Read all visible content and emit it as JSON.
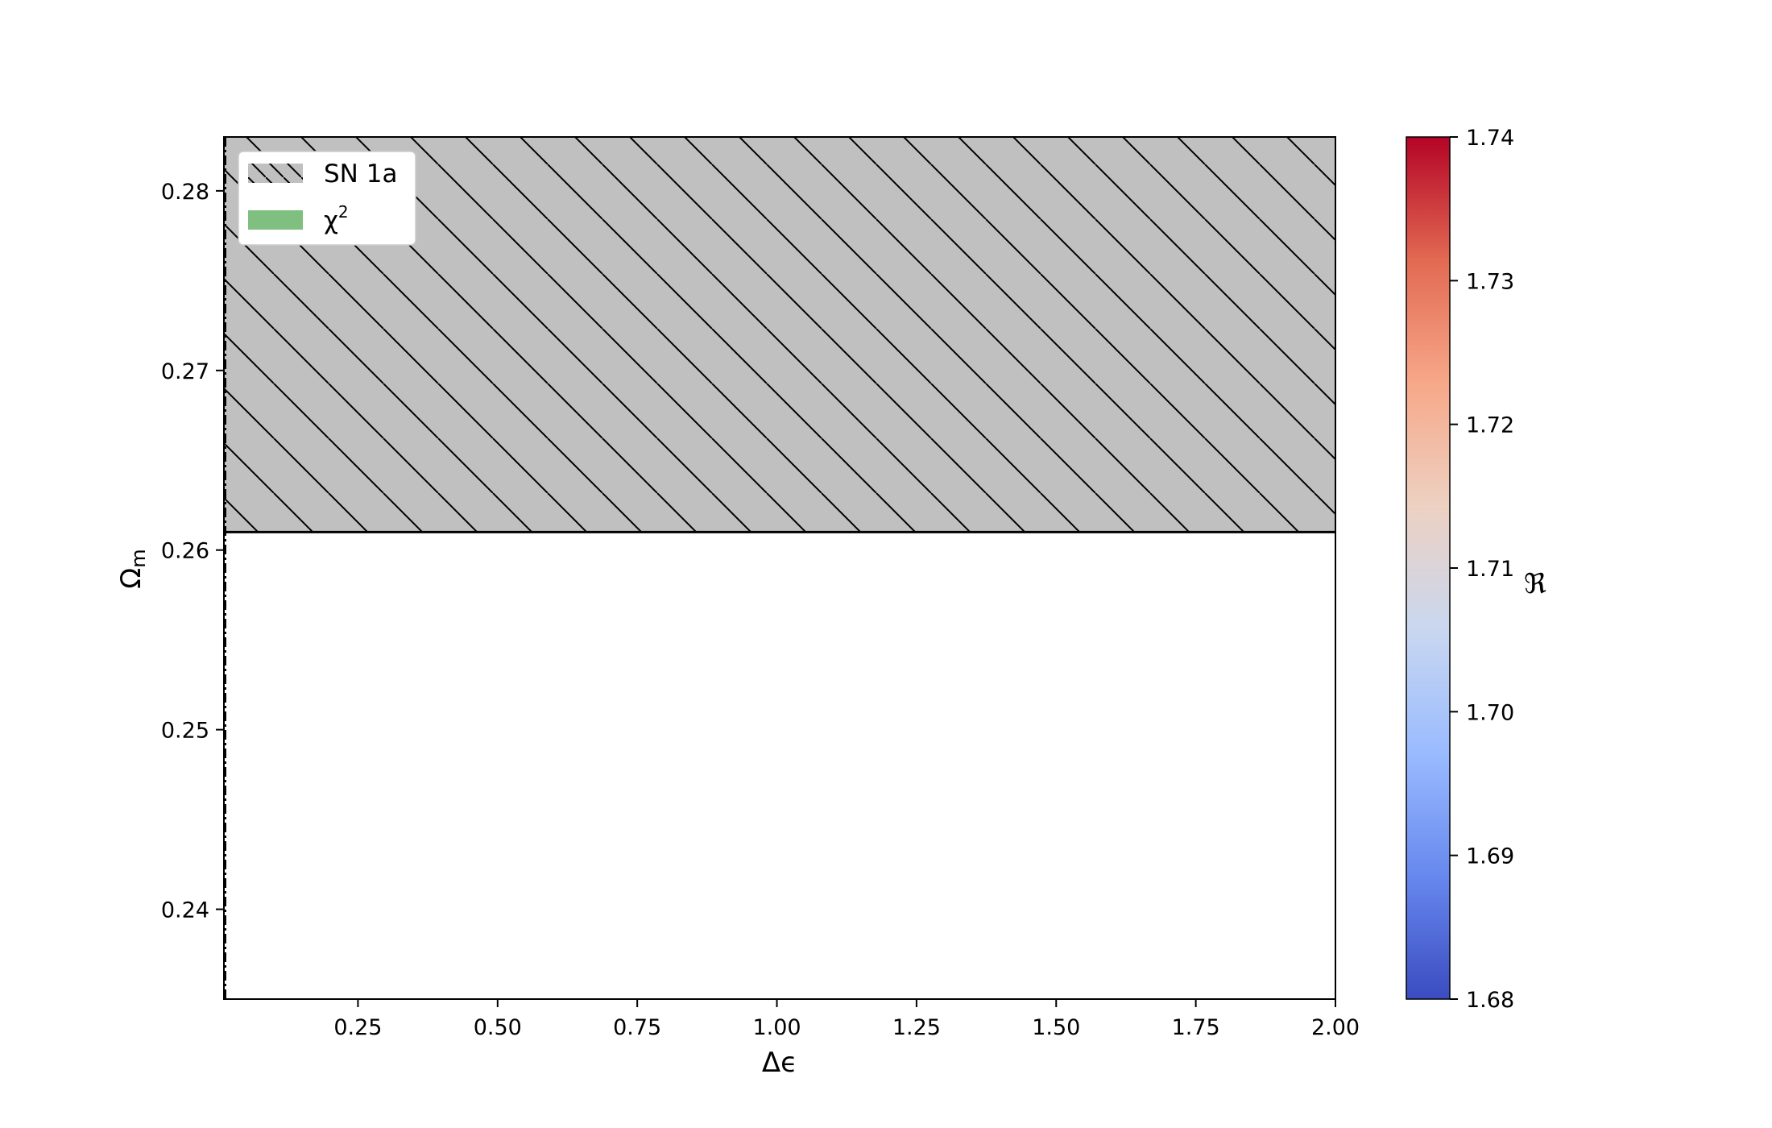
{
  "chart_data": {
    "type": "contour",
    "xlabel": "Δϵ",
    "ylabel": "Ω",
    "ylabel_sub": "m",
    "xlim": [
      0.01,
      2.0
    ],
    "ylim": [
      0.235,
      0.283
    ],
    "x_ticks": [
      0.25,
      0.5,
      0.75,
      1.0,
      1.25,
      1.5,
      1.75,
      2.0
    ],
    "x_tick_labels": [
      "0.25",
      "0.50",
      "0.75",
      "1.00",
      "1.25",
      "1.50",
      "1.75",
      "2.00"
    ],
    "y_ticks": [
      0.24,
      0.25,
      0.26,
      0.27,
      0.28
    ],
    "y_tick_labels": [
      "0.24",
      "0.25",
      "0.26",
      "0.27",
      "0.28"
    ],
    "sn1a_region": {
      "y_min": 0.261,
      "y_max": 0.283,
      "color": "#c0c0c0",
      "hatch": "\\"
    },
    "legend": {
      "placement": "upper-left",
      "entries": [
        {
          "label": "SN 1a",
          "color": "#c0c0c0",
          "hatch": true
        },
        {
          "label": "χ",
          "sup": "2",
          "color": "#7fbf7f",
          "hatch": false
        }
      ]
    },
    "colorbar": {
      "label": "ℜ",
      "colormap": "coolwarm",
      "range": [
        1.68,
        1.74
      ],
      "ticks": [
        1.68,
        1.69,
        1.7,
        1.71,
        1.72,
        1.73,
        1.74
      ],
      "tick_labels": [
        "1.68",
        "1.69",
        "1.70",
        "1.71",
        "1.72",
        "1.73",
        "1.74"
      ],
      "colors": [
        "#3b4cc0",
        "#6788ee",
        "#9abbff",
        "#c9d7f0",
        "#edd1c2",
        "#f7a889",
        "#e26952",
        "#b40426"
      ]
    }
  }
}
